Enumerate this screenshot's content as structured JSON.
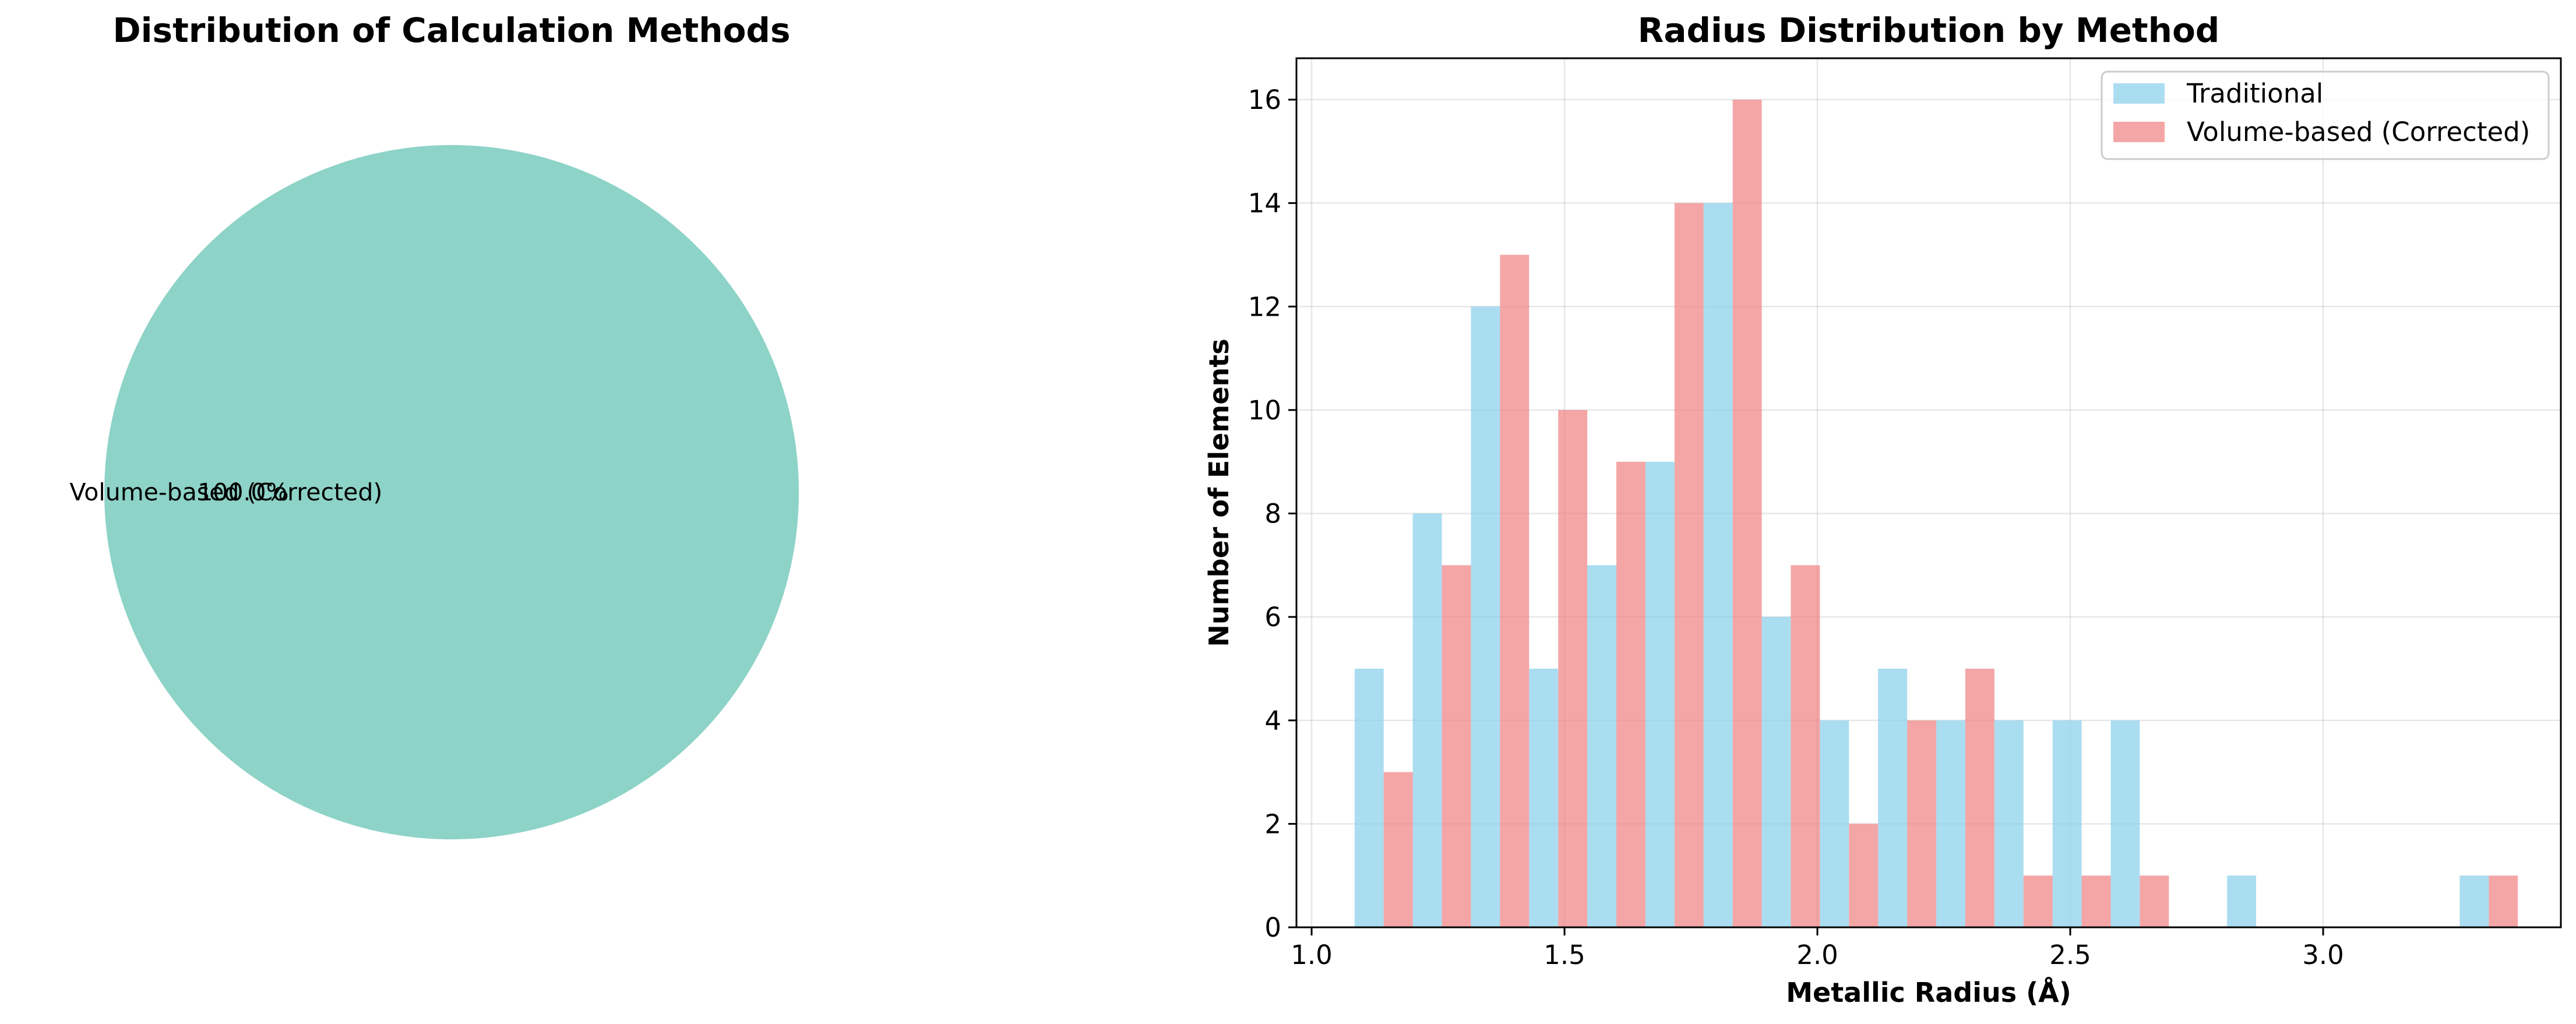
{
  "chart_data": [
    {
      "type": "pie",
      "title": "Distribution of Calculation Methods",
      "slices": [
        {
          "label": "Volume-based (Corrected)",
          "value": 100.0,
          "pct_label": "100.0%",
          "color": "#8dd3c7"
        }
      ]
    },
    {
      "type": "bar",
      "title": "Radius Distribution by Method",
      "xlabel": "Metallic Radius (Å)",
      "ylabel": "Number of Elements",
      "xlim": [
        0.97,
        3.47
      ],
      "ylim": [
        0,
        16.8
      ],
      "xticks": [
        {
          "value": 1.0,
          "label": "1.0"
        },
        {
          "value": 1.5,
          "label": "1.5"
        },
        {
          "value": 2.0,
          "label": "2.0"
        },
        {
          "value": 2.5,
          "label": "2.5"
        },
        {
          "value": 3.0,
          "label": "3.0"
        }
      ],
      "yticks": [
        {
          "value": 0,
          "label": "0"
        },
        {
          "value": 2,
          "label": "2"
        },
        {
          "value": 4,
          "label": "4"
        },
        {
          "value": 6,
          "label": "6"
        },
        {
          "value": 8,
          "label": "8"
        },
        {
          "value": 10,
          "label": "10"
        },
        {
          "value": 12,
          "label": "12"
        },
        {
          "value": 14,
          "label": "14"
        },
        {
          "value": 16,
          "label": "16"
        }
      ],
      "grid": true,
      "legend_position": "top-right",
      "bin_edges": [
        1.085,
        1.2,
        1.315,
        1.43,
        1.545,
        1.66,
        1.775,
        1.89,
        2.005,
        2.12,
        2.235,
        2.35,
        2.465,
        2.58,
        2.695,
        2.81,
        2.925,
        3.04,
        3.155,
        3.27,
        3.385
      ],
      "series": [
        {
          "name": "Traditional",
          "color": "#87ceeb",
          "values": [
            5,
            8,
            12,
            5,
            7,
            9,
            14,
            6,
            4,
            5,
            4,
            4,
            4,
            4,
            0,
            1,
            0,
            0,
            0,
            1
          ]
        },
        {
          "name": "Volume-based (Corrected)",
          "color": "#f08080",
          "values": [
            3,
            7,
            13,
            10,
            9,
            14,
            16,
            7,
            2,
            4,
            5,
            1,
            1,
            1,
            0,
            0,
            0,
            0,
            0,
            1
          ]
        }
      ]
    }
  ]
}
